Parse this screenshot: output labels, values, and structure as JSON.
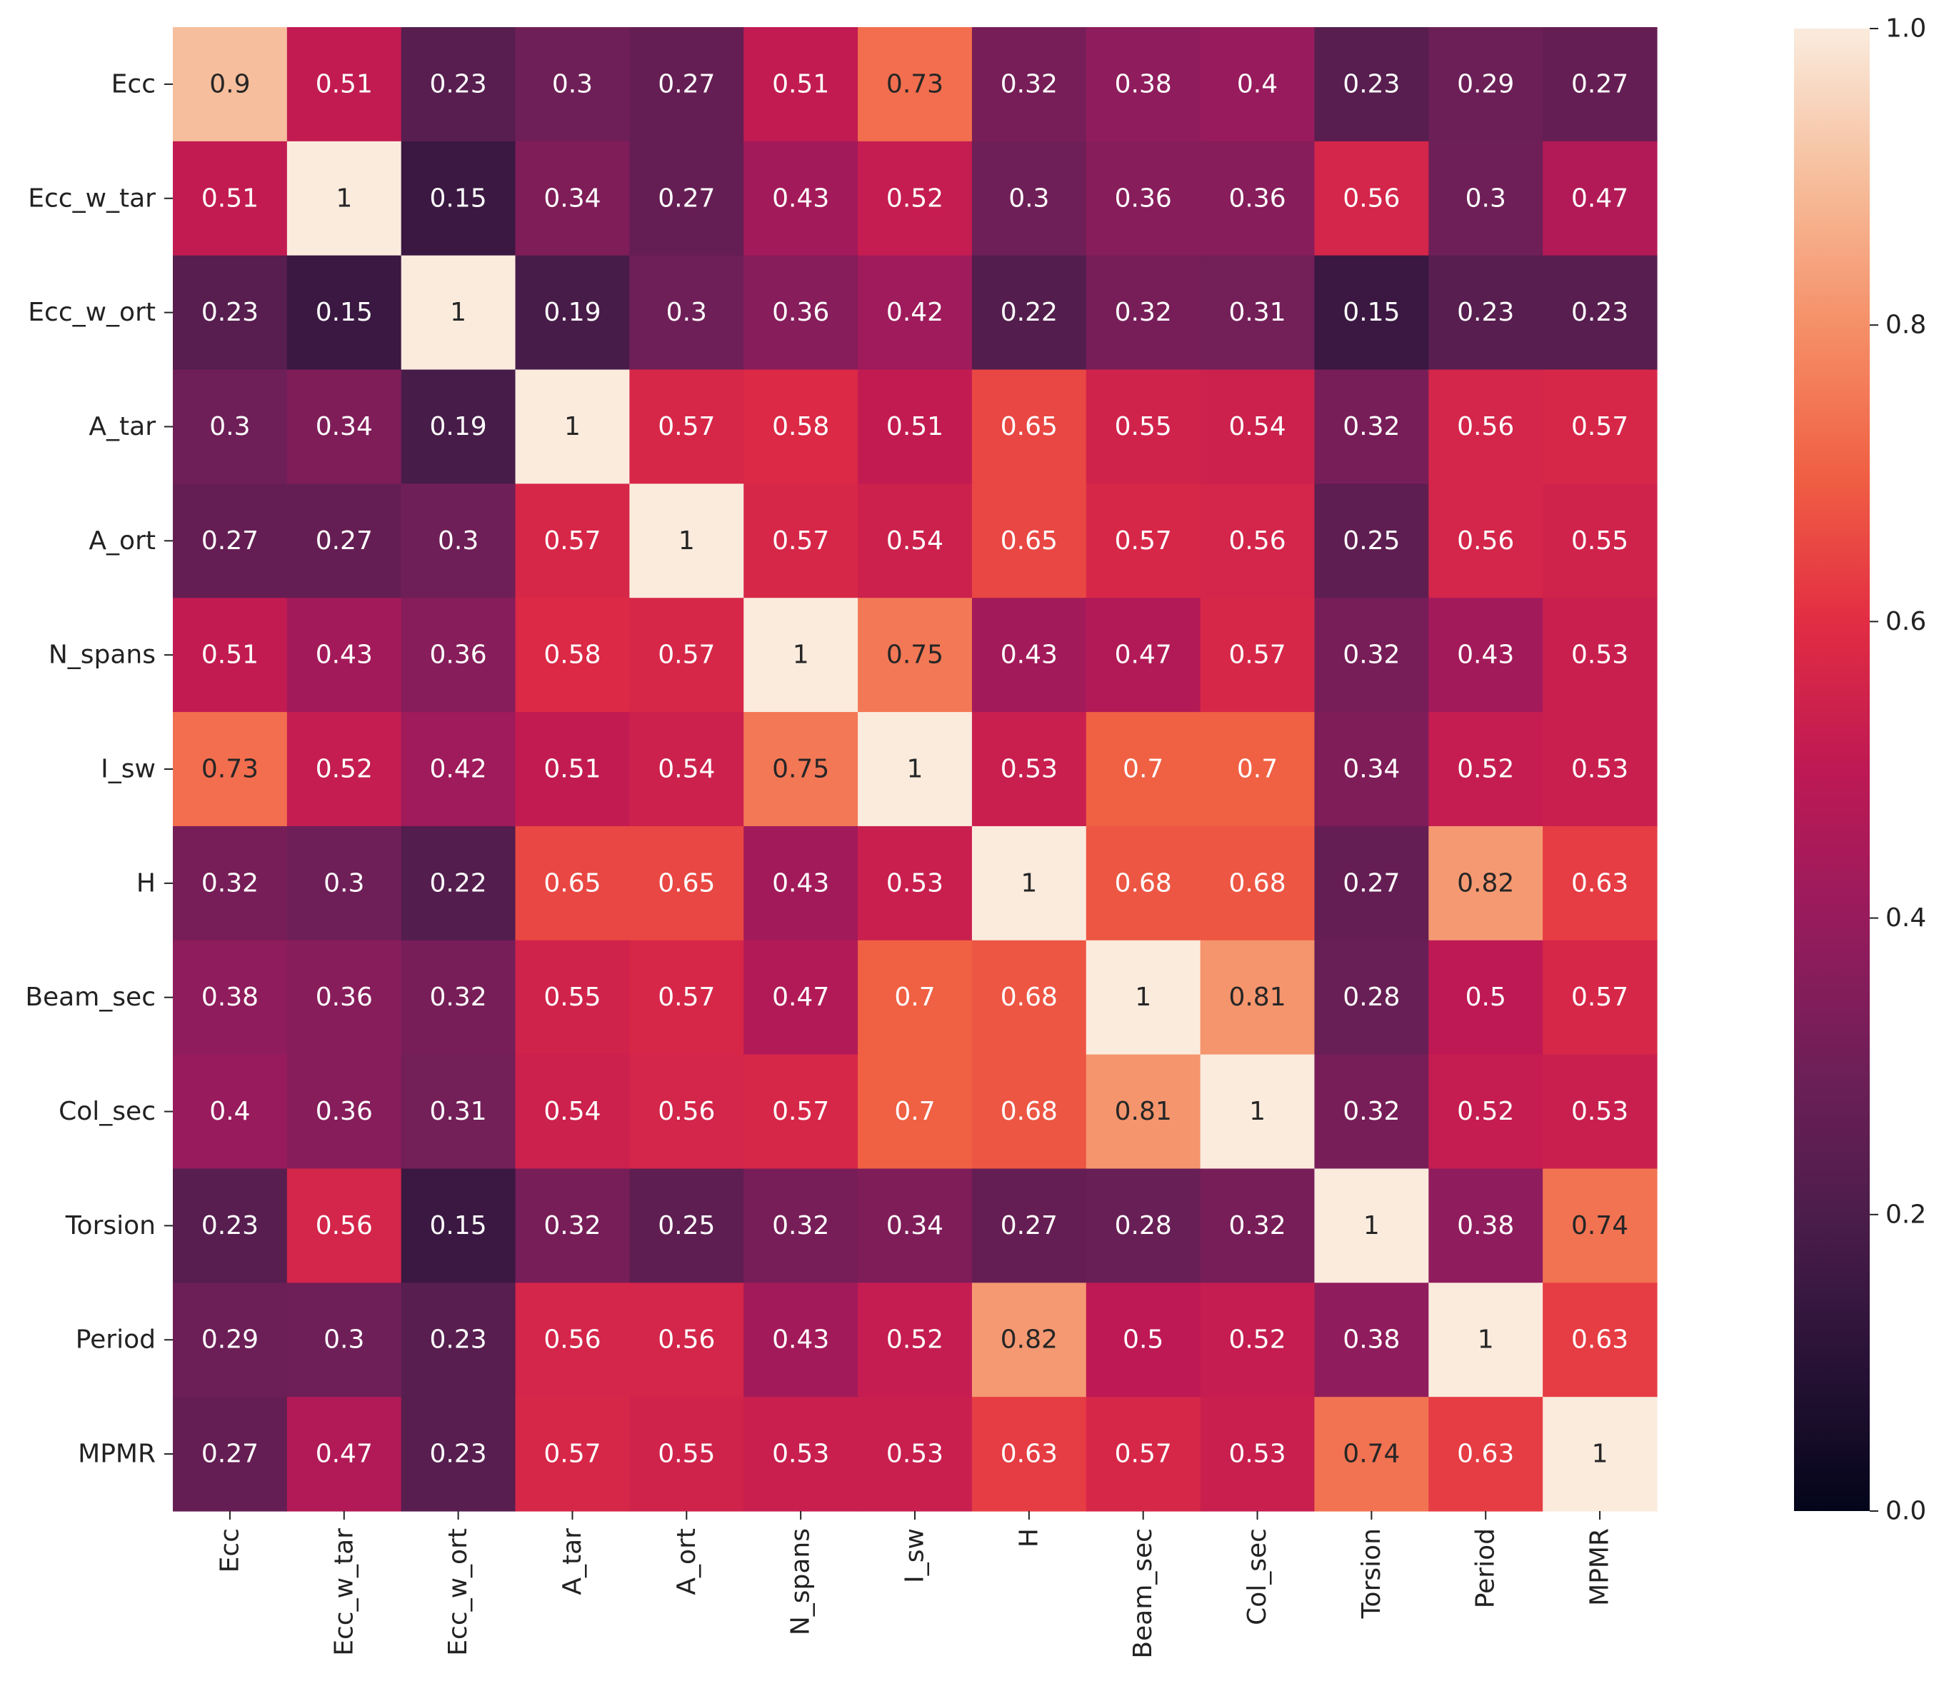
{
  "chart_data": {
    "type": "heatmap",
    "title": "",
    "xlabel": "",
    "ylabel": "",
    "x_categories": [
      "Ecc",
      "Ecc_w_tar",
      "Ecc_w_ort",
      "A_tar",
      "A_ort",
      "N_spans",
      "I_sw",
      "H",
      "Beam_sec",
      "Col_sec",
      "Torsion",
      "Period",
      "MPMR"
    ],
    "y_categories": [
      "Ecc",
      "Ecc_w_tar",
      "Ecc_w_ort",
      "A_tar",
      "A_ort",
      "N_spans",
      "I_sw",
      "H",
      "Beam_sec",
      "Col_sec",
      "Torsion",
      "Period",
      "MPMR"
    ],
    "values": [
      [
        0.9,
        0.51,
        0.23,
        0.3,
        0.27,
        0.51,
        0.73,
        0.32,
        0.38,
        0.4,
        0.23,
        0.29,
        0.27
      ],
      [
        0.51,
        1,
        0.15,
        0.34,
        0.27,
        0.43,
        0.52,
        0.3,
        0.36,
        0.36,
        0.56,
        0.3,
        0.47
      ],
      [
        0.23,
        0.15,
        1,
        0.19,
        0.3,
        0.36,
        0.42,
        0.22,
        0.32,
        0.31,
        0.15,
        0.23,
        0.23
      ],
      [
        0.3,
        0.34,
        0.19,
        1,
        0.57,
        0.58,
        0.51,
        0.65,
        0.55,
        0.54,
        0.32,
        0.56,
        0.57
      ],
      [
        0.27,
        0.27,
        0.3,
        0.57,
        1,
        0.57,
        0.54,
        0.65,
        0.57,
        0.56,
        0.25,
        0.56,
        0.55
      ],
      [
        0.51,
        0.43,
        0.36,
        0.58,
        0.57,
        1,
        0.75,
        0.43,
        0.47,
        0.57,
        0.32,
        0.43,
        0.53
      ],
      [
        0.73,
        0.52,
        0.42,
        0.51,
        0.54,
        0.75,
        1,
        0.53,
        0.7,
        0.7,
        0.34,
        0.52,
        0.53
      ],
      [
        0.32,
        0.3,
        0.22,
        0.65,
        0.65,
        0.43,
        0.53,
        1,
        0.68,
        0.68,
        0.27,
        0.82,
        0.63
      ],
      [
        0.38,
        0.36,
        0.32,
        0.55,
        0.57,
        0.47,
        0.7,
        0.68,
        1,
        0.81,
        0.28,
        0.5,
        0.57
      ],
      [
        0.4,
        0.36,
        0.31,
        0.54,
        0.56,
        0.57,
        0.7,
        0.68,
        0.81,
        1,
        0.32,
        0.52,
        0.53
      ],
      [
        0.23,
        0.56,
        0.15,
        0.32,
        0.25,
        0.32,
        0.34,
        0.27,
        0.28,
        0.32,
        1,
        0.38,
        0.74
      ],
      [
        0.29,
        0.3,
        0.23,
        0.56,
        0.56,
        0.43,
        0.52,
        0.82,
        0.5,
        0.52,
        0.38,
        1,
        0.63
      ],
      [
        0.27,
        0.47,
        0.23,
        0.57,
        0.55,
        0.53,
        0.53,
        0.63,
        0.57,
        0.53,
        0.74,
        0.63,
        1
      ]
    ],
    "value_range": [
      0.0,
      1.0
    ],
    "colormap": "rocket",
    "colorbar": {
      "ticks": [
        0.0,
        0.2,
        0.4,
        0.6,
        0.8,
        1.0
      ],
      "tick_labels": [
        "0.0",
        "0.2",
        "0.4",
        "0.6",
        "0.8",
        "1.0"
      ]
    },
    "annotated": true,
    "grid": false
  }
}
